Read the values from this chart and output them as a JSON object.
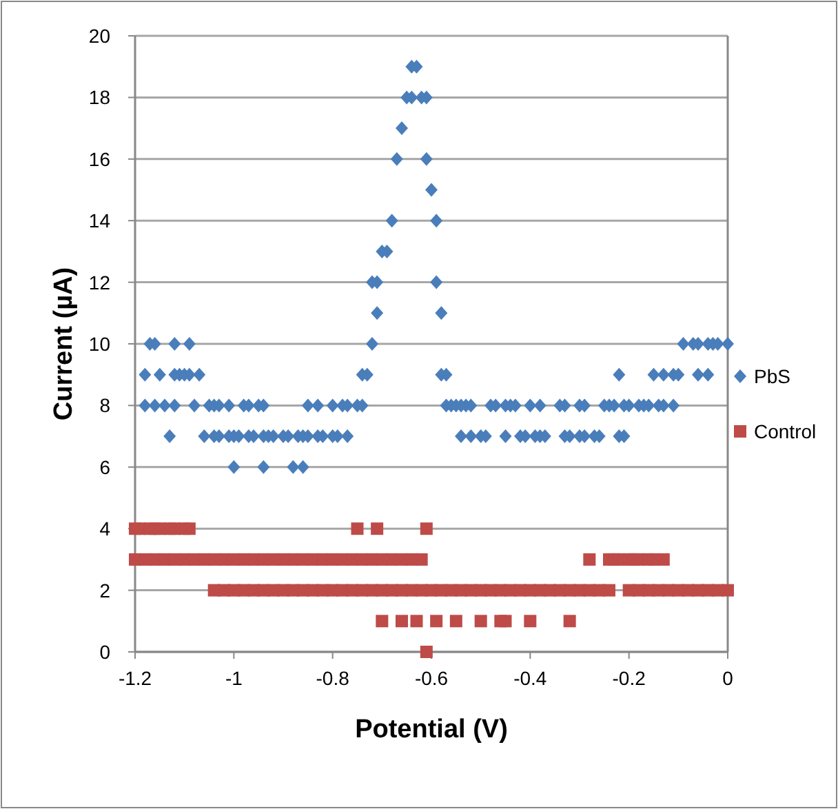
{
  "chart_data": {
    "type": "scatter",
    "xlabel": "Potential (V)",
    "ylabel": "Current (µA)",
    "xlim": [
      -1.2,
      0
    ],
    "xticks": [
      -1.2,
      -1,
      -0.8,
      -0.6,
      -0.4,
      -0.2,
      0
    ],
    "ylim": [
      0,
      20
    ],
    "yticks": [
      0,
      2,
      4,
      6,
      8,
      10,
      12,
      14,
      16,
      18,
      20
    ],
    "grid": "y",
    "legend": "right",
    "series": [
      {
        "name": "PbS",
        "color": "#4a7ebb",
        "marker": "diamond",
        "x": [
          -1.17,
          -1.16,
          -1.12,
          -1.09,
          -0.72,
          -0.09,
          -0.07,
          -0.06,
          -0.04,
          -0.03,
          -0.02,
          0,
          -1.18,
          -1.15,
          -1.12,
          -1.11,
          -1.1,
          -1.09,
          -1.07,
          -0.74,
          -0.73,
          -0.58,
          -0.57,
          -0.22,
          -0.15,
          -0.13,
          -0.11,
          -0.1,
          -0.06,
          -0.04,
          -1.18,
          -1.16,
          -1.14,
          -1.12,
          -1.08,
          -1.05,
          -1.04,
          -1.03,
          -1.01,
          -0.98,
          -0.97,
          -0.95,
          -0.94,
          -0.85,
          -0.83,
          -0.8,
          -0.78,
          -0.77,
          -0.75,
          -0.74,
          -0.57,
          -0.56,
          -0.55,
          -0.54,
          -0.53,
          -0.52,
          -0.48,
          -0.47,
          -0.45,
          -0.44,
          -0.43,
          -0.4,
          -0.38,
          -0.34,
          -0.33,
          -0.3,
          -0.29,
          -0.25,
          -0.24,
          -0.23,
          -0.21,
          -0.2,
          -0.18,
          -0.17,
          -0.16,
          -0.14,
          -0.13,
          -0.11,
          -1.13,
          -1.06,
          -1.04,
          -1.03,
          -1.01,
          -1,
          -0.99,
          -0.97,
          -0.96,
          -0.94,
          -0.93,
          -0.92,
          -0.9,
          -0.89,
          -0.87,
          -0.86,
          -0.85,
          -0.83,
          -0.82,
          -0.8,
          -0.79,
          -0.77,
          -0.54,
          -0.52,
          -0.5,
          -0.49,
          -0.45,
          -0.42,
          -0.41,
          -0.39,
          -0.38,
          -0.37,
          -0.33,
          -0.32,
          -0.3,
          -0.29,
          -0.27,
          -0.26,
          -0.22,
          -0.21,
          -1,
          -0.94,
          -0.88,
          -0.86,
          -0.64,
          -0.63,
          -0.65,
          -0.64,
          -0.62,
          -0.61,
          -0.66,
          -0.67,
          -0.61,
          -0.6,
          -0.68,
          -0.59,
          -0.7,
          -0.69,
          -0.72,
          -0.71,
          -0.59,
          -0.71,
          -0.58
        ],
        "values": [
          10,
          10,
          10,
          10,
          10,
          10,
          10,
          10,
          10,
          10,
          10,
          10,
          9,
          9,
          9,
          9,
          9,
          9,
          9,
          9,
          9,
          9,
          9,
          9,
          9,
          9,
          9,
          9,
          9,
          9,
          8,
          8,
          8,
          8,
          8,
          8,
          8,
          8,
          8,
          8,
          8,
          8,
          8,
          8,
          8,
          8,
          8,
          8,
          8,
          8,
          8,
          8,
          8,
          8,
          8,
          8,
          8,
          8,
          8,
          8,
          8,
          8,
          8,
          8,
          8,
          8,
          8,
          8,
          8,
          8,
          8,
          8,
          8,
          8,
          8,
          8,
          8,
          8,
          7,
          7,
          7,
          7,
          7,
          7,
          7,
          7,
          7,
          7,
          7,
          7,
          7,
          7,
          7,
          7,
          7,
          7,
          7,
          7,
          7,
          7,
          7,
          7,
          7,
          7,
          7,
          7,
          7,
          7,
          7,
          7,
          7,
          7,
          7,
          7,
          7,
          7,
          7,
          7,
          6,
          6,
          6,
          6,
          19,
          19,
          18,
          18,
          18,
          18,
          17,
          16,
          16,
          15,
          14,
          14,
          13,
          13,
          12,
          12,
          12,
          11,
          11
        ]
      },
      {
        "name": "Control",
        "color": "#be4b48",
        "marker": "square",
        "x": [
          -1.2,
          -1.19,
          -1.17,
          -1.16,
          -1.15,
          -1.13,
          -1.12,
          -1.1,
          -1.09,
          -0.75,
          -0.71,
          -0.61,
          -1.2,
          -1.18,
          -1.16,
          -1.14,
          -1.12,
          -1.1,
          -1.08,
          -1.06,
          -1.04,
          -1.02,
          -1,
          -0.98,
          -0.96,
          -0.94,
          -0.92,
          -0.9,
          -0.88,
          -0.86,
          -0.84,
          -0.82,
          -0.8,
          -0.78,
          -0.76,
          -0.74,
          -0.72,
          -0.7,
          -0.68,
          -0.66,
          -0.64,
          -0.62,
          -0.28,
          -0.24,
          -0.23,
          -0.22,
          -0.2,
          -0.19,
          -0.18,
          -0.16,
          -0.15,
          -0.13,
          -1.04,
          -1.02,
          -1,
          -0.98,
          -0.96,
          -0.94,
          -0.92,
          -0.9,
          -0.88,
          -0.86,
          -0.84,
          -0.82,
          -0.8,
          -0.78,
          -0.76,
          -0.74,
          -0.72,
          -0.7,
          -0.68,
          -0.66,
          -0.64,
          -0.62,
          -0.6,
          -0.58,
          -0.56,
          -0.54,
          -0.52,
          -0.5,
          -0.48,
          -0.46,
          -0.44,
          -0.42,
          -0.4,
          -0.38,
          -0.36,
          -0.34,
          -0.32,
          -0.3,
          -0.28,
          -0.26,
          -0.24,
          -0.2,
          -0.18,
          -0.16,
          -0.14,
          -0.12,
          -0.1,
          -0.08,
          -0.06,
          -0.04,
          -0.02,
          0,
          -0.7,
          -0.66,
          -0.63,
          -0.59,
          -0.55,
          -0.5,
          -0.46,
          -0.45,
          -0.4,
          -0.32,
          -0.61
        ],
        "values": [
          4,
          4,
          4,
          4,
          4,
          4,
          4,
          4,
          4,
          4,
          4,
          4,
          3,
          3,
          3,
          3,
          3,
          3,
          3,
          3,
          3,
          3,
          3,
          3,
          3,
          3,
          3,
          3,
          3,
          3,
          3,
          3,
          3,
          3,
          3,
          3,
          3,
          3,
          3,
          3,
          3,
          3,
          3,
          3,
          3,
          3,
          3,
          3,
          3,
          3,
          3,
          3,
          2,
          2,
          2,
          2,
          2,
          2,
          2,
          2,
          2,
          2,
          2,
          2,
          2,
          2,
          2,
          2,
          2,
          2,
          2,
          2,
          2,
          2,
          2,
          2,
          2,
          2,
          2,
          2,
          2,
          2,
          2,
          2,
          2,
          2,
          2,
          2,
          2,
          2,
          2,
          2,
          2,
          2,
          2,
          2,
          2,
          2,
          2,
          2,
          2,
          2,
          2,
          2,
          1,
          1,
          1,
          1,
          1,
          1,
          1,
          1,
          1,
          1,
          0
        ]
      }
    ]
  }
}
